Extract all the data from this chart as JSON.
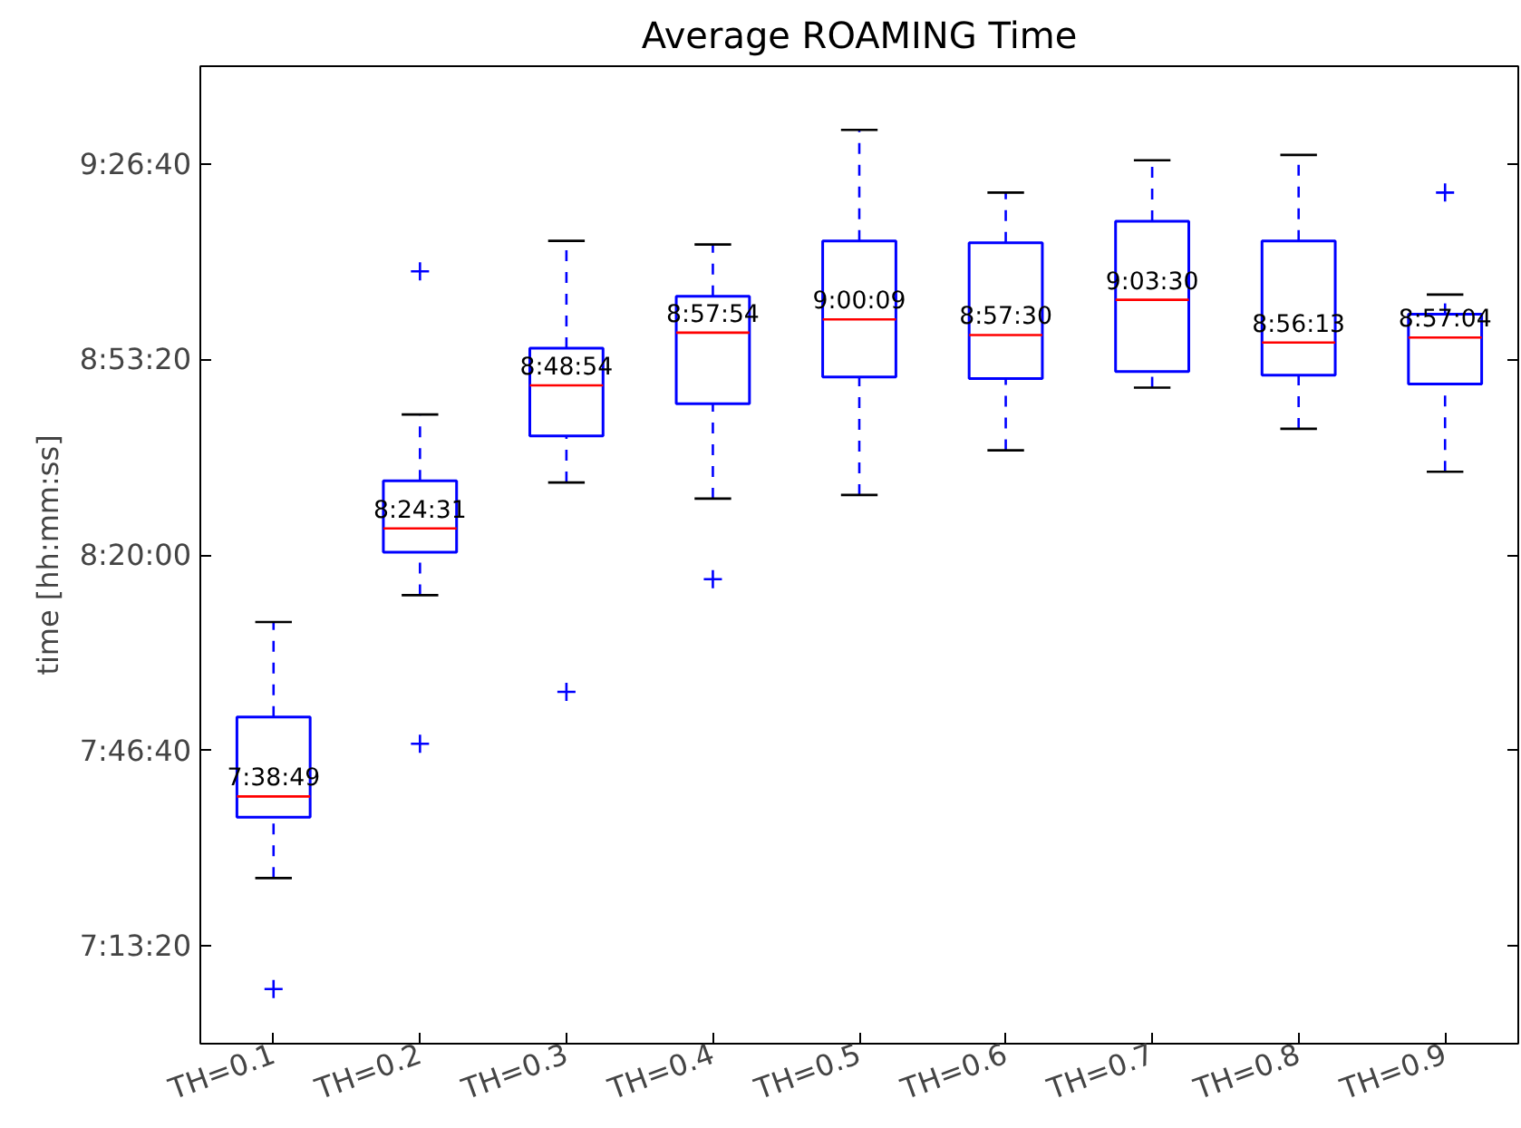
{
  "chart_data": {
    "type": "box",
    "title": "Average ROAMING Time",
    "ylabel": "time [hh:mm:ss]",
    "categories": [
      "TH=0.1",
      "TH=0.2",
      "TH=0.3",
      "TH=0.4",
      "TH=0.5",
      "TH=0.6",
      "TH=0.7",
      "TH=0.8",
      "TH=0.9"
    ],
    "series": [
      {
        "color": "#0000ff",
        "line_style": "dashed",
        "boxes": [
          {
            "low": 7.415,
            "q1": 7.5881,
            "median": 7.6469,
            "q3": 7.8728,
            "high": 8.1425,
            "outliers": [
              7.0997
            ]
          },
          {
            "low": 8.2189,
            "q1": 8.3408,
            "median": 8.4086,
            "q3": 8.5442,
            "high": 8.7325,
            "outliers": [
              7.7967,
              9.1392
            ]
          },
          {
            "low": 8.5392,
            "q1": 8.6714,
            "median": 8.815,
            "q3": 8.9206,
            "high": 9.2258,
            "outliers": [
              7.9442
            ]
          },
          {
            "low": 8.4933,
            "q1": 8.7628,
            "median": 8.965,
            "q3": 9.0681,
            "high": 9.2156,
            "outliers": [
              8.2644
            ]
          },
          {
            "low": 8.5036,
            "q1": 8.8392,
            "median": 9.0025,
            "q3": 9.2258,
            "high": 9.5411
          },
          {
            "low": 8.6306,
            "q1": 8.8342,
            "median": 8.9583,
            "q3": 9.2206,
            "high": 9.3631
          },
          {
            "low": 8.8086,
            "q1": 8.8544,
            "median": 9.0583,
            "q3": 9.2817,
            "high": 9.4547
          },
          {
            "low": 8.6917,
            "q1": 8.8442,
            "median": 8.9369,
            "q3": 9.2258,
            "high": 9.47
          },
          {
            "low": 8.5697,
            "q1": 8.8189,
            "median": 8.9511,
            "q3": 9.0172,
            "high": 9.0731,
            "outliers": [
              9.3631
            ]
          }
        ]
      }
    ],
    "marker": "cross",
    "value_labels": [
      "7:38:49",
      "8:24:31",
      "8:48:54",
      "8:57:54",
      "9:00:09",
      "8:57:30",
      "9:03:30",
      "8:56:13",
      "8:57:04"
    ],
    "ylim": [
      6.9444,
      9.7222
    ],
    "yticks": [
      {
        "value": 7.2222,
        "label": "7:13:20"
      },
      {
        "value": 7.7778,
        "label": "7:46:40"
      },
      {
        "value": 8.3333,
        "label": "8:20:00"
      },
      {
        "value": 8.8889,
        "label": "8:53:20"
      },
      {
        "value": 9.4444,
        "label": "9:26:40"
      }
    ],
    "grid": false
  }
}
